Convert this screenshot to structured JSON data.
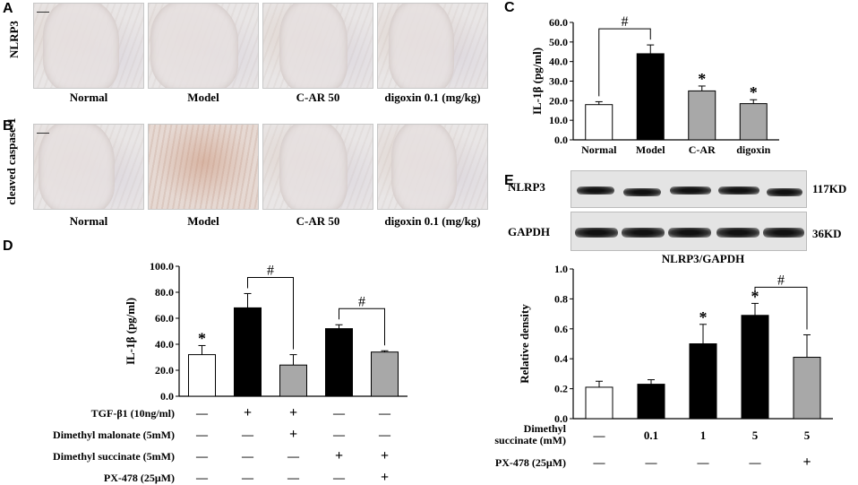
{
  "panels": {
    "A": {
      "letter": "A",
      "row_label": "NLRP3"
    },
    "B": {
      "letter": "B",
      "row_label": "cleaved caspase-1"
    },
    "C": {
      "letter": "C"
    },
    "D": {
      "letter": "D"
    },
    "E": {
      "letter": "E"
    }
  },
  "micro_labels": [
    "Normal",
    "Model",
    "C-AR 50",
    "digoxin 0.1 (mg/kg)"
  ],
  "western": {
    "rows": [
      {
        "name": "NLRP3",
        "size": "117KD"
      },
      {
        "name": "GAPDH",
        "size": "36KD"
      }
    ],
    "colors": {
      "band": "#111111",
      "background": "#e4e4e4"
    }
  },
  "chart_data": [
    {
      "id": "C",
      "type": "bar",
      "ylabel": "IL-1β (pg/ml)",
      "ylim": [
        0,
        60
      ],
      "yticks": [
        "0.0",
        "10.0",
        "20.0",
        "30.0",
        "40.0",
        "50.0",
        "60.0"
      ],
      "categories": [
        "Normal",
        "Model",
        "C-AR",
        "digoxin"
      ],
      "values": [
        18,
        44,
        25,
        18.5
      ],
      "errors": [
        1.5,
        4.5,
        2.5,
        2
      ],
      "colors": [
        "#ffffff",
        "#000000",
        "#a8a8a8",
        "#a8a8a8"
      ],
      "annotations": {
        "stars": [
          2,
          3
        ],
        "bracket": {
          "from": 0,
          "to": 1,
          "text": "#"
        }
      }
    },
    {
      "id": "D",
      "type": "bar",
      "ylabel": "IL-1β (pg/ml)",
      "ylim": [
        0,
        100
      ],
      "yticks": [
        "0.0",
        "20.0",
        "40.0",
        "60.0",
        "80.0",
        "100.0"
      ],
      "values": [
        32,
        68,
        24,
        52,
        34
      ],
      "errors": [
        7,
        11,
        8,
        3,
        1
      ],
      "colors": [
        "#ffffff",
        "#000000",
        "#a8a8a8",
        "#000000",
        "#a8a8a8"
      ],
      "annotations": {
        "stars": [
          0
        ],
        "brackets": [
          {
            "from": 1,
            "to": 2,
            "text": "#"
          },
          {
            "from": 3,
            "to": 4,
            "text": "#"
          }
        ]
      },
      "conditions": [
        {
          "label": "TGF-β1 (10ng/ml)",
          "marks": [
            "—",
            "+",
            "+",
            "—",
            "—"
          ]
        },
        {
          "label": "Dimethyl malonate (5mM)",
          "marks": [
            "—",
            "—",
            "+",
            "—",
            "—"
          ]
        },
        {
          "label": "Dimethyl succinate (5mM)",
          "marks": [
            "—",
            "—",
            "—",
            "+",
            "+"
          ]
        },
        {
          "label": "PX-478 (25μM)",
          "marks": [
            "—",
            "—",
            "—",
            "—",
            "+"
          ]
        }
      ]
    },
    {
      "id": "E",
      "type": "bar",
      "title": "NLRP3/GAPDH",
      "ylabel": "Relative density",
      "ylim": [
        0,
        1.0
      ],
      "yticks": [
        "0.0",
        "0.2",
        "0.4",
        "0.6",
        "0.8",
        "1.0"
      ],
      "values": [
        0.21,
        0.23,
        0.5,
        0.69,
        0.41
      ],
      "errors": [
        0.04,
        0.03,
        0.13,
        0.08,
        0.15
      ],
      "colors": [
        "#ffffff",
        "#000000",
        "#000000",
        "#000000",
        "#a8a8a8"
      ],
      "annotations": {
        "stars": [
          2,
          3
        ],
        "bracket": {
          "from": 3,
          "to": 4,
          "text": "#"
        }
      },
      "conditions": [
        {
          "label_lines": [
            "Dimethyl",
            "succinate (mM)"
          ],
          "marks": [
            "—",
            "0.1",
            "1",
            "5",
            "5"
          ]
        },
        {
          "label": "PX-478 (25μM)",
          "marks": [
            "—",
            "—",
            "—",
            "—",
            "+"
          ]
        }
      ]
    }
  ]
}
